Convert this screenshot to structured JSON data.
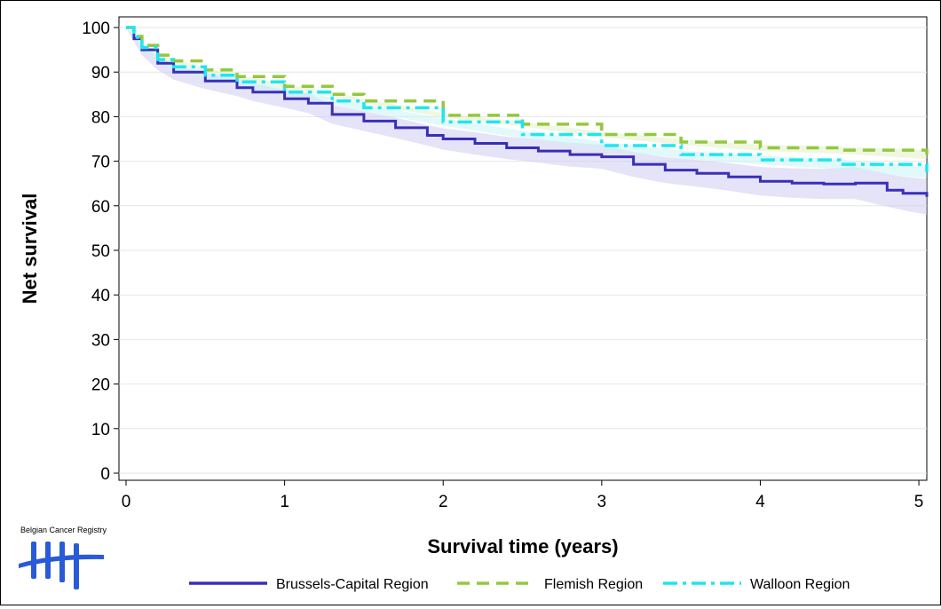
{
  "chart_data": {
    "type": "line",
    "title": "",
    "xlabel": "Survival time (years)",
    "ylabel": "Net survival",
    "xlim": [
      0,
      5.05
    ],
    "ylim": [
      0,
      100
    ],
    "x_ticks": [
      0,
      1,
      2,
      3,
      4,
      5
    ],
    "y_ticks": [
      0,
      10,
      20,
      30,
      40,
      50,
      60,
      70,
      80,
      90,
      100
    ],
    "grid": "horizontal",
    "legend_position": "bottom",
    "series": [
      {
        "name": "Brussels-Capital Region",
        "color": "#3a2fb8",
        "band_color": "#cfccf0",
        "style": "solid",
        "x": [
          0,
          0.05,
          0.1,
          0.2,
          0.3,
          0.5,
          0.7,
          0.8,
          1.0,
          1.15,
          1.3,
          1.5,
          1.7,
          1.9,
          2.0,
          2.2,
          2.4,
          2.6,
          2.8,
          3.0,
          3.2,
          3.4,
          3.6,
          3.8,
          4.0,
          4.2,
          4.4,
          4.6,
          4.8,
          4.9,
          5.05
        ],
        "values": [
          100,
          97.5,
          95,
          92,
          90,
          88,
          86.5,
          85.5,
          84,
          83,
          80.5,
          79,
          77.5,
          75.8,
          75,
          74,
          73,
          72.3,
          71.5,
          71,
          69.3,
          68,
          67.3,
          66.5,
          65.5,
          65.1,
          64.9,
          65.1,
          63.5,
          62.8,
          62
        ],
        "lower": [
          100,
          96.8,
          93.8,
          90.5,
          88.3,
          86.2,
          84.6,
          83.5,
          82,
          80.8,
          78.4,
          76.8,
          75.2,
          73.5,
          72.6,
          71.5,
          70.5,
          69.7,
          68.8,
          68.3,
          66.5,
          65.1,
          64.3,
          63.4,
          62.3,
          61.8,
          61.5,
          61.5,
          59.8,
          59,
          58
        ],
        "upper": [
          100,
          98.2,
          96.2,
          93.5,
          91.7,
          89.8,
          88.4,
          87.5,
          86,
          85.2,
          82.6,
          81.2,
          79.8,
          78.1,
          77.4,
          76.5,
          75.5,
          74.9,
          74.2,
          73.7,
          72.1,
          70.9,
          70.3,
          69.6,
          68.7,
          68.4,
          68.3,
          68.7,
          67.2,
          66.6,
          66
        ]
      },
      {
        "name": "Flemish Region",
        "color": "#93c83e",
        "band_color": "#e2f0c8",
        "style": "dashed",
        "x": [
          0,
          0.05,
          0.1,
          0.2,
          0.3,
          0.5,
          0.7,
          1.0,
          1.3,
          1.5,
          2.0,
          2.5,
          3.0,
          3.5,
          4.0,
          4.5,
          5.05
        ],
        "values": [
          100,
          98,
          96,
          93.8,
          92.5,
          90.5,
          89,
          86.8,
          85,
          83.5,
          80.3,
          78.3,
          76,
          74.3,
          73,
          72.5,
          71.5
        ],
        "lower": [
          100,
          97.7,
          95.6,
          93.3,
          92,
          90,
          88.5,
          86.3,
          84.5,
          83,
          79.8,
          77.8,
          75.4,
          73.7,
          72.3,
          71.7,
          70.5
        ],
        "upper": [
          100,
          98.3,
          96.4,
          94.3,
          93,
          91,
          89.5,
          87.3,
          85.5,
          84,
          80.8,
          78.8,
          76.6,
          74.9,
          73.7,
          73.3,
          72.5
        ]
      },
      {
        "name": "Walloon Region",
        "color": "#1ee6f0",
        "band_color": "#c8f4f6",
        "style": "dashdot",
        "x": [
          0,
          0.05,
          0.1,
          0.2,
          0.3,
          0.5,
          0.7,
          1.0,
          1.3,
          1.5,
          2.0,
          2.5,
          3.0,
          3.5,
          4.0,
          4.5,
          5.05
        ],
        "values": [
          100,
          97.8,
          95.5,
          92.8,
          91.2,
          89.3,
          87.8,
          85.5,
          83.5,
          82,
          78.8,
          76,
          73.5,
          71.5,
          70.3,
          69.3,
          67.5
        ],
        "lower": [
          100,
          97.4,
          94.9,
          92.1,
          90.5,
          88.5,
          87,
          84.7,
          82.7,
          81.2,
          78,
          75.2,
          72.6,
          70.6,
          69.3,
          68.2,
          66.2
        ],
        "upper": [
          100,
          98.2,
          96.1,
          93.5,
          91.9,
          90.1,
          88.6,
          86.3,
          84.3,
          82.8,
          79.6,
          76.8,
          74.4,
          72.4,
          71.3,
          70.4,
          68.8
        ]
      }
    ]
  },
  "logo": {
    "text": "Belgian Cancer Registry",
    "color": "#2a5bd7"
  }
}
